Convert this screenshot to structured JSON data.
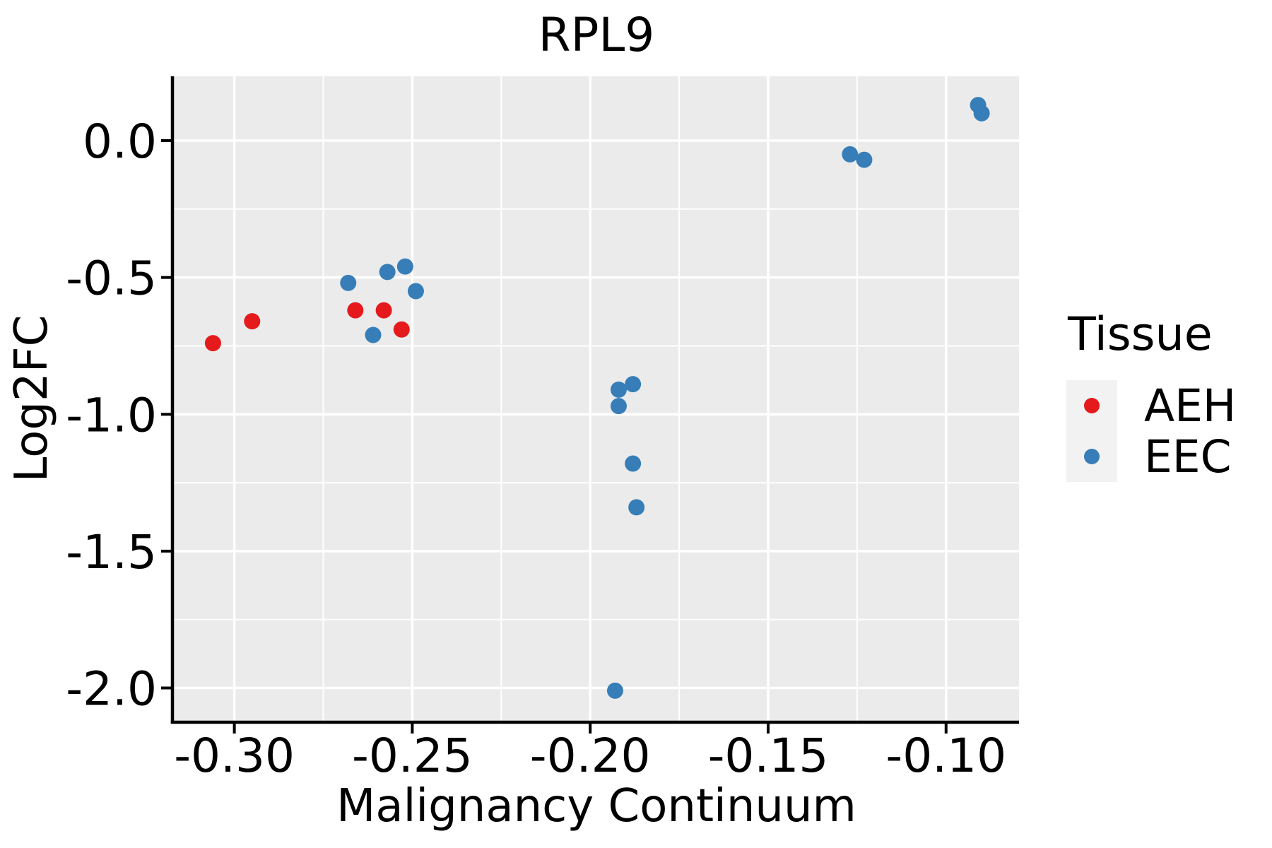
{
  "page": {
    "background": "#FFFFFF"
  },
  "chart_data": {
    "type": "scatter",
    "title": "RPL9",
    "xlabel": "Malignancy Continuum",
    "ylabel": "Log2FC",
    "xlim": [
      -0.317,
      -0.0795
    ],
    "ylim": [
      -2.12,
      0.235
    ],
    "x_ticks": {
      "values": [
        -0.3,
        -0.25,
        -0.2,
        -0.15,
        -0.1
      ],
      "labels": [
        "-0.30",
        "-0.25",
        "-0.20",
        "-0.15",
        "-0.10"
      ],
      "minor": [
        -0.275,
        -0.225,
        -0.175,
        -0.125
      ]
    },
    "y_ticks": {
      "values": [
        0.0,
        -0.5,
        -1.0,
        -1.5,
        -2.0
      ],
      "labels": [
        "0.0",
        "-0.5",
        "-1.0",
        "-1.5",
        "-2.0"
      ],
      "minor": [
        -0.25,
        -0.75,
        -1.25,
        -1.75
      ]
    },
    "grid": {
      "major": true,
      "minor": true
    },
    "legend_position": "right",
    "series": [
      {
        "name": "AEH",
        "color": "#E41A1C",
        "points": [
          [
            -0.306,
            -0.74
          ],
          [
            -0.295,
            -0.66
          ],
          [
            -0.266,
            -0.62
          ],
          [
            -0.258,
            -0.62
          ],
          [
            -0.253,
            -0.69
          ]
        ]
      },
      {
        "name": "EEC",
        "color": "#377EB8",
        "points": [
          [
            -0.268,
            -0.52
          ],
          [
            -0.261,
            -0.71
          ],
          [
            -0.257,
            -0.48
          ],
          [
            -0.252,
            -0.46
          ],
          [
            -0.249,
            -0.55
          ],
          [
            -0.193,
            -2.01
          ],
          [
            -0.192,
            -0.91
          ],
          [
            -0.192,
            -0.97
          ],
          [
            -0.188,
            -0.89
          ],
          [
            -0.188,
            -1.18
          ],
          [
            -0.187,
            -1.34
          ],
          [
            -0.127,
            -0.05
          ],
          [
            -0.123,
            -0.07
          ],
          [
            -0.091,
            0.13
          ],
          [
            -0.09,
            0.1
          ]
        ]
      }
    ]
  },
  "legend": {
    "title": "Tissue",
    "items": [
      {
        "label": "AEH",
        "color": "#E41A1C"
      },
      {
        "label": "EEC",
        "color": "#377EB8"
      }
    ]
  },
  "style": {
    "panel_bg": "#EBEBEB",
    "grid_color": "#FFFFFF",
    "axis_color": "#000000",
    "text_color": "#000000",
    "legend_key_bg": "#F2F2F2",
    "point_radius": 11.5
  }
}
